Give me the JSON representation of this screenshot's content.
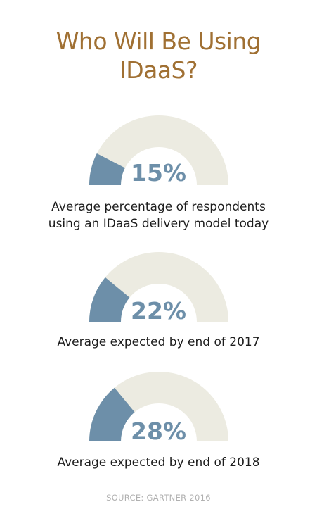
{
  "title": {
    "line1": "Who Will Be Using",
    "line2": "IDaaS?"
  },
  "colors": {
    "title": "#a07033",
    "filled": "#6d8fa9",
    "track": "#ecebe1"
  },
  "chart_data": [
    {
      "type": "gauge",
      "value": 15,
      "max": 100,
      "label": "15%",
      "caption": [
        "Average percentage of respondents",
        "using an IDaaS delivery model today"
      ]
    },
    {
      "type": "gauge",
      "value": 22,
      "max": 100,
      "label": "22%",
      "caption": [
        "Average expected by end of 2017"
      ]
    },
    {
      "type": "gauge",
      "value": 28,
      "max": 100,
      "label": "28%",
      "caption": [
        "Average expected by end of 2018"
      ]
    }
  ],
  "source": "SOURCE: GARTNER 2016"
}
